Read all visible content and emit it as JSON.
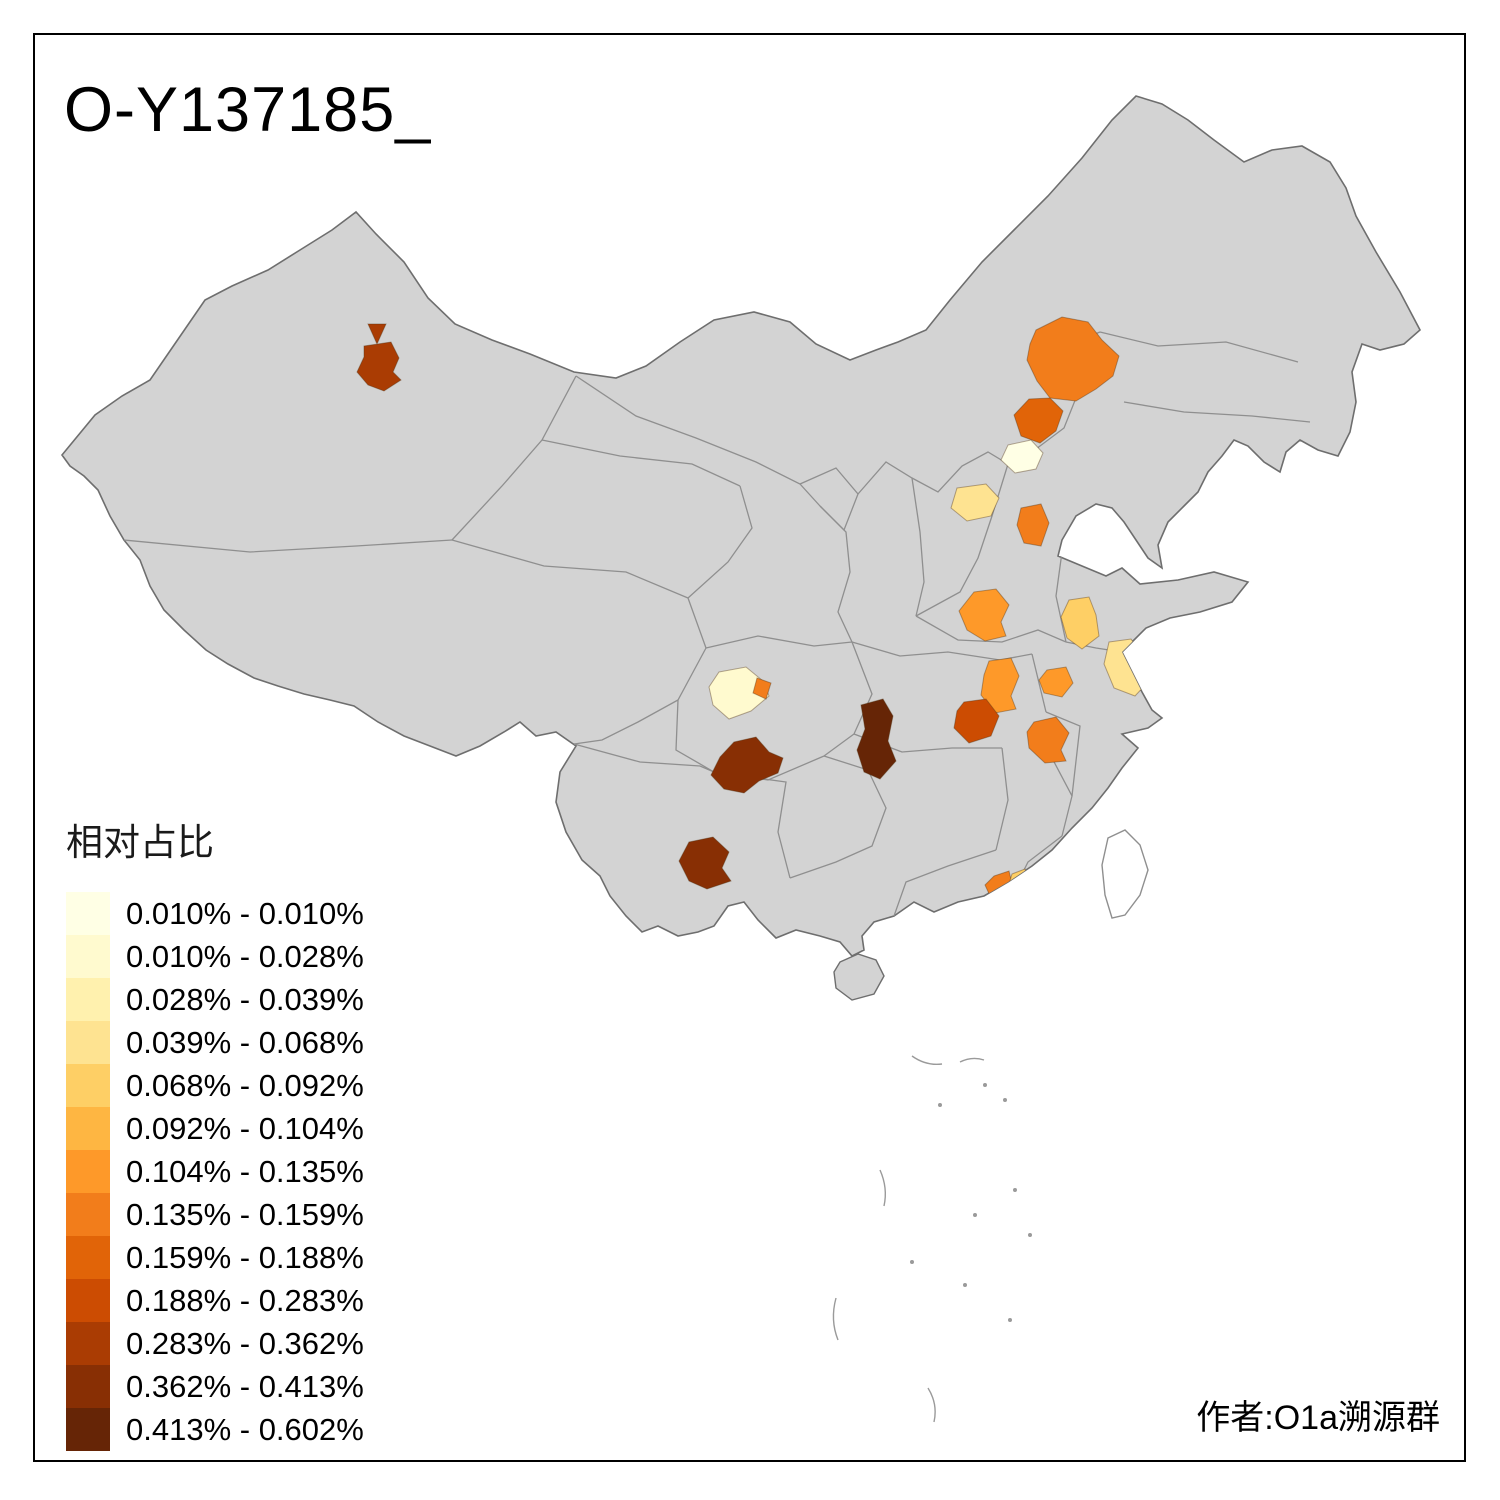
{
  "title": "O-Y137185_",
  "attribution": "作者:O1a溯源群",
  "legend": {
    "title": "相对占比",
    "items": [
      {
        "label": "0.010% - 0.010%",
        "color": "#ffffe5"
      },
      {
        "label": "0.010% - 0.028%",
        "color": "#fffacf"
      },
      {
        "label": "0.028% - 0.039%",
        "color": "#fff1ae"
      },
      {
        "label": "0.039% - 0.068%",
        "color": "#fee391"
      },
      {
        "label": "0.068% - 0.092%",
        "color": "#fecf65"
      },
      {
        "label": "0.092% - 0.104%",
        "color": "#feb642"
      },
      {
        "label": "0.104% - 0.135%",
        "color": "#fe9929"
      },
      {
        "label": "0.135% - 0.159%",
        "color": "#f27d1b"
      },
      {
        "label": "0.159% - 0.188%",
        "color": "#e16408"
      },
      {
        "label": "0.188% - 0.283%",
        "color": "#cc4c02"
      },
      {
        "label": "0.283% - 0.362%",
        "color": "#aa3c03"
      },
      {
        "label": "0.362% - 0.413%",
        "color": "#882f04"
      },
      {
        "label": "0.413% - 0.602%",
        "color": "#662506"
      }
    ]
  },
  "map": {
    "base_fill": "#d3d3d3",
    "border_color": "#6e6e6e",
    "regions": [
      {
        "name": "xinjiang-prefecture",
        "color": "#aa3c03"
      },
      {
        "name": "inner-mongolia-prefecture",
        "color": "#f27d1b"
      },
      {
        "name": "chifeng-prefecture",
        "color": "#e16408"
      },
      {
        "name": "beijing-area",
        "color": "#ffffe5"
      },
      {
        "name": "shanxi-prefecture",
        "color": "#fee391"
      },
      {
        "name": "hebei-prefecture",
        "color": "#f27d1b"
      },
      {
        "name": "henan-prefecture",
        "color": "#fe9929"
      },
      {
        "name": "jiangsu-north-prefecture",
        "color": "#fecf65"
      },
      {
        "name": "jiangsu-coast-prefecture",
        "color": "#fee391"
      },
      {
        "name": "anhui-north-prefecture",
        "color": "#fe9929"
      },
      {
        "name": "anhui-east-prefecture",
        "color": "#fe9929"
      },
      {
        "name": "hubei-prefecture",
        "color": "#cc4c02"
      },
      {
        "name": "chongqing-prefecture",
        "color": "#662506"
      },
      {
        "name": "chengdu-area",
        "color": "#fffacf"
      },
      {
        "name": "chengdu-east-fragment",
        "color": "#f27d1b"
      },
      {
        "name": "south-sichuan-prefecture",
        "color": "#882f04"
      },
      {
        "name": "yunnan-prefecture",
        "color": "#882f04"
      },
      {
        "name": "jiangxi-north-prefecture",
        "color": "#f27d1b"
      },
      {
        "name": "guangdong-prefecture",
        "color": "#f27d1b"
      },
      {
        "name": "guangdong-east-fragment",
        "color": "#fecf65"
      }
    ]
  }
}
